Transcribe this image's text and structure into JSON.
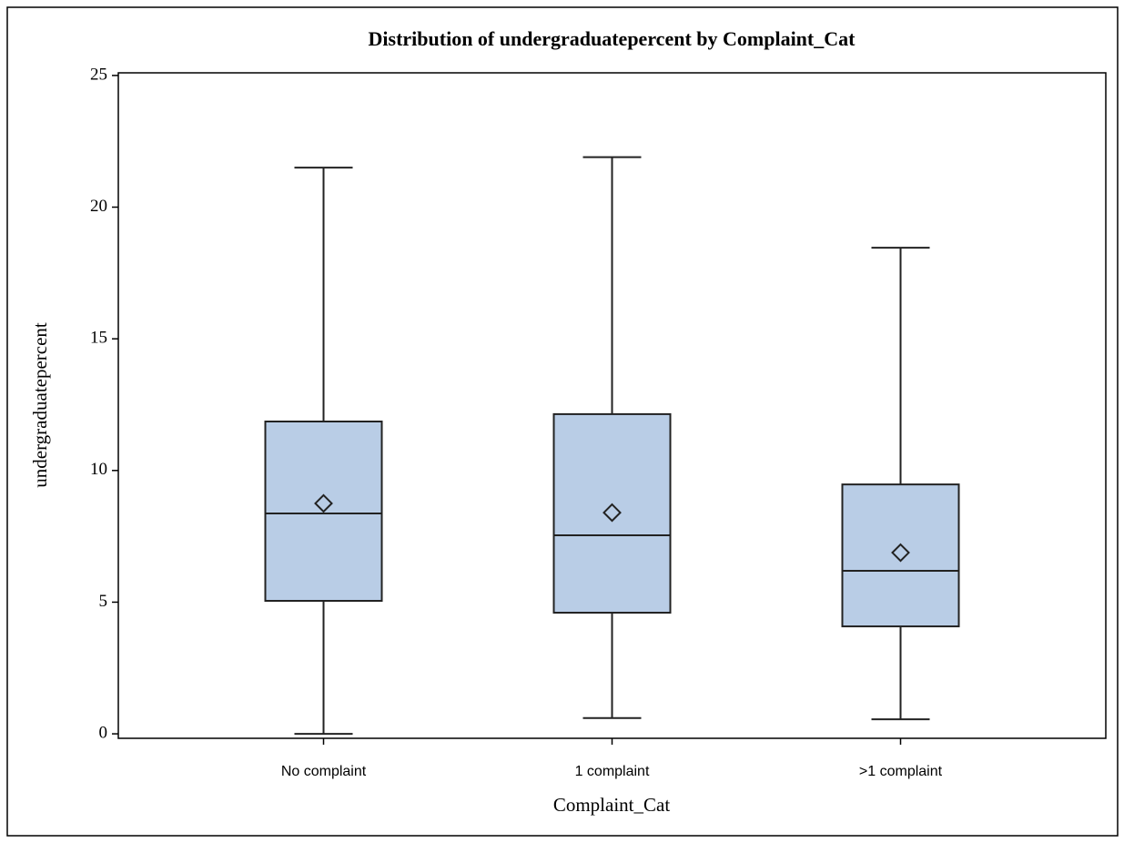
{
  "chart_data": {
    "type": "box",
    "title": "Distribution of undergraduatepercent by Complaint_Cat",
    "x_label": "Complaint_Cat",
    "y_label": "undergraduatepercent",
    "categories": [
      "No complaint",
      "1 complaint",
      ">1 complaint"
    ],
    "boxes": [
      {
        "min": 0,
        "q1": 5.05,
        "median": 8.37,
        "q3": 11.86,
        "max": 21.5,
        "mean": 8.75
      },
      {
        "min": 0.6,
        "q1": 4.6,
        "median": 7.54,
        "q3": 12.14,
        "max": 21.9,
        "mean": 8.4
      },
      {
        "min": 0.55,
        "q1": 4.08,
        "median": 6.19,
        "q3": 9.47,
        "max": 18.46,
        "mean": 6.88
      }
    ],
    "color": "#b9cde6",
    "ylim": [
      -0.17,
      25.1
    ],
    "yticks": [
      0,
      5,
      10,
      15,
      20,
      25
    ],
    "grid": false
  }
}
